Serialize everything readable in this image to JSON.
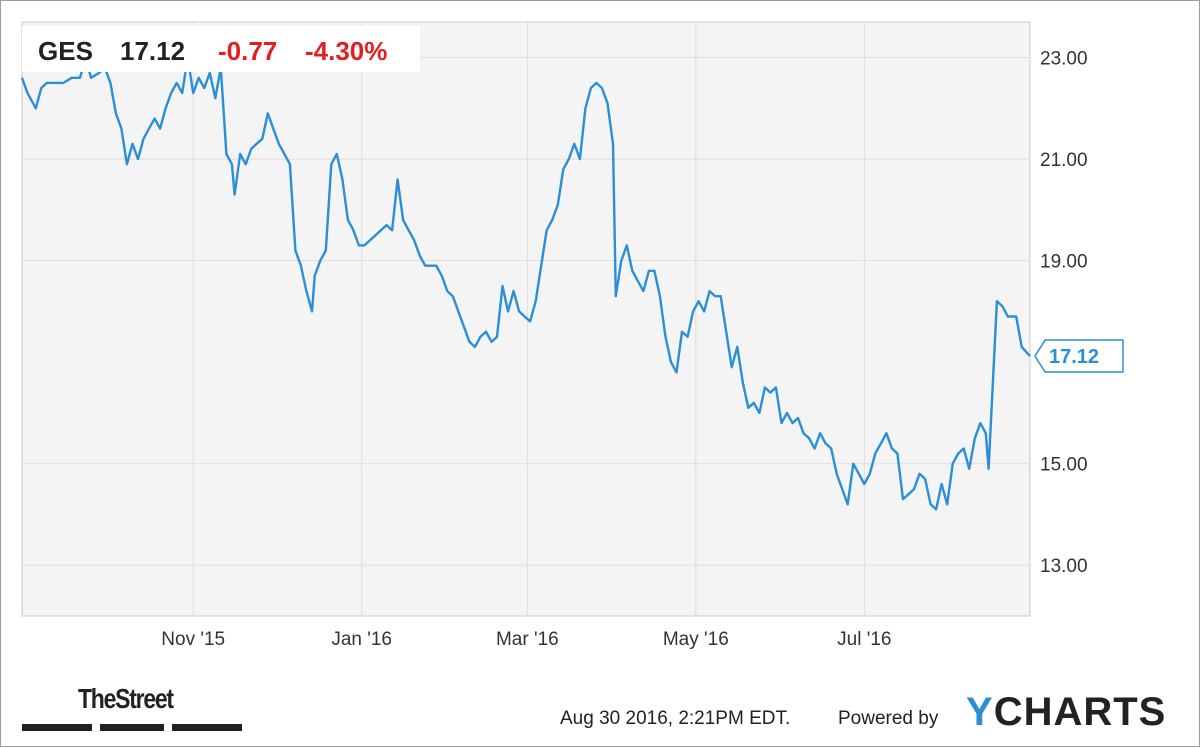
{
  "header": {
    "ticker": "GES",
    "price": "17.12",
    "change": "-0.77",
    "change_pct": "-4.30%"
  },
  "colors": {
    "line": "#2b8fd6",
    "negative": "#e02020",
    "plot_background": "#f4f4f4",
    "grid": "#dddddd"
  },
  "footer": {
    "timestamp": "Aug 30 2016, 2:21PM EDT.",
    "powered_by": "Powered by",
    "brand_y": "Y",
    "brand_rest": "CHARTS",
    "publisher_logo": "TheStreet"
  },
  "chart_data": {
    "type": "line",
    "title": "",
    "xlabel": "",
    "ylabel": "",
    "ylim": [
      12.0,
      23.7
    ],
    "y_ticks": [
      "23.00",
      "21.00",
      "19.00",
      "15.00",
      "13.00"
    ],
    "x_ticks": [
      "Nov '15",
      "Jan '16",
      "Mar '16",
      "May '16",
      "Jul '16"
    ],
    "x_range": [
      "2015-08-31",
      "2016-08-30"
    ],
    "grid": true,
    "last_value_label": "17.12",
    "series": [
      {
        "values": [
          [
            "2015-08-31",
            22.6
          ],
          [
            "2015-09-02",
            22.3
          ],
          [
            "2015-09-05",
            22.0
          ],
          [
            "2015-09-07",
            22.4
          ],
          [
            "2015-09-09",
            22.5
          ],
          [
            "2015-09-12",
            22.5
          ],
          [
            "2015-09-15",
            22.5
          ],
          [
            "2015-09-18",
            22.6
          ],
          [
            "2015-09-21",
            22.6
          ],
          [
            "2015-09-23",
            23.0
          ],
          [
            "2015-09-25",
            22.6
          ],
          [
            "2015-09-28",
            22.7
          ],
          [
            "2015-09-30",
            22.8
          ],
          [
            "2015-10-02",
            22.5
          ],
          [
            "2015-10-04",
            21.9
          ],
          [
            "2015-10-06",
            21.6
          ],
          [
            "2015-10-08",
            20.9
          ],
          [
            "2015-10-10",
            21.3
          ],
          [
            "2015-10-12",
            21.0
          ],
          [
            "2015-10-14",
            21.4
          ],
          [
            "2015-10-16",
            21.6
          ],
          [
            "2015-10-18",
            21.8
          ],
          [
            "2015-10-20",
            21.6
          ],
          [
            "2015-10-22",
            22.0
          ],
          [
            "2015-10-24",
            22.3
          ],
          [
            "2015-10-26",
            22.5
          ],
          [
            "2015-10-28",
            22.3
          ],
          [
            "2015-10-30",
            23.0
          ],
          [
            "2015-11-01",
            22.3
          ],
          [
            "2015-11-03",
            22.6
          ],
          [
            "2015-11-05",
            22.4
          ],
          [
            "2015-11-07",
            22.7
          ],
          [
            "2015-11-09",
            22.2
          ],
          [
            "2015-11-11",
            22.8
          ],
          [
            "2015-11-13",
            21.1
          ],
          [
            "2015-11-15",
            20.9
          ],
          [
            "2015-11-16",
            20.3
          ],
          [
            "2015-11-18",
            21.1
          ],
          [
            "2015-11-20",
            20.9
          ],
          [
            "2015-11-22",
            21.2
          ],
          [
            "2015-11-24",
            21.3
          ],
          [
            "2015-11-26",
            21.4
          ],
          [
            "2015-11-28",
            21.9
          ],
          [
            "2015-11-30",
            21.6
          ],
          [
            "2015-12-02",
            21.3
          ],
          [
            "2015-12-04",
            21.1
          ],
          [
            "2015-12-06",
            20.9
          ],
          [
            "2015-12-08",
            19.2
          ],
          [
            "2015-12-10",
            18.9
          ],
          [
            "2015-12-12",
            18.4
          ],
          [
            "2015-12-14",
            18.0
          ],
          [
            "2015-12-15",
            18.7
          ],
          [
            "2015-12-17",
            19.0
          ],
          [
            "2015-12-19",
            19.2
          ],
          [
            "2015-12-21",
            20.9
          ],
          [
            "2015-12-23",
            21.1
          ],
          [
            "2015-12-25",
            20.6
          ],
          [
            "2015-12-27",
            19.8
          ],
          [
            "2015-12-29",
            19.6
          ],
          [
            "2015-12-31",
            19.3
          ],
          [
            "2016-01-02",
            19.3
          ],
          [
            "2016-01-04",
            19.4
          ],
          [
            "2016-01-06",
            19.5
          ],
          [
            "2016-01-08",
            19.6
          ],
          [
            "2016-01-10",
            19.7
          ],
          [
            "2016-01-12",
            19.6
          ],
          [
            "2016-01-14",
            20.6
          ],
          [
            "2016-01-16",
            19.8
          ],
          [
            "2016-01-18",
            19.6
          ],
          [
            "2016-01-20",
            19.4
          ],
          [
            "2016-01-22",
            19.1
          ],
          [
            "2016-01-24",
            18.9
          ],
          [
            "2016-01-26",
            18.9
          ],
          [
            "2016-01-28",
            18.9
          ],
          [
            "2016-01-30",
            18.7
          ],
          [
            "2016-02-01",
            18.4
          ],
          [
            "2016-02-03",
            18.3
          ],
          [
            "2016-02-05",
            18.0
          ],
          [
            "2016-02-07",
            17.7
          ],
          [
            "2016-02-09",
            17.4
          ],
          [
            "2016-02-11",
            17.3
          ],
          [
            "2016-02-13",
            17.5
          ],
          [
            "2016-02-15",
            17.6
          ],
          [
            "2016-02-17",
            17.4
          ],
          [
            "2016-02-19",
            17.5
          ],
          [
            "2016-02-21",
            18.5
          ],
          [
            "2016-02-23",
            18.0
          ],
          [
            "2016-02-25",
            18.4
          ],
          [
            "2016-02-27",
            18.0
          ],
          [
            "2016-02-29",
            17.9
          ],
          [
            "2016-03-02",
            17.8
          ],
          [
            "2016-03-04",
            18.2
          ],
          [
            "2016-03-06",
            18.9
          ],
          [
            "2016-03-08",
            19.6
          ],
          [
            "2016-03-10",
            19.8
          ],
          [
            "2016-03-12",
            20.1
          ],
          [
            "2016-03-14",
            20.8
          ],
          [
            "2016-03-16",
            21.0
          ],
          [
            "2016-03-18",
            21.3
          ],
          [
            "2016-03-20",
            21.0
          ],
          [
            "2016-03-22",
            22.0
          ],
          [
            "2016-03-24",
            22.4
          ],
          [
            "2016-03-26",
            22.5
          ],
          [
            "2016-03-28",
            22.4
          ],
          [
            "2016-03-30",
            22.1
          ],
          [
            "2016-04-01",
            21.3
          ],
          [
            "2016-04-02",
            18.3
          ],
          [
            "2016-04-04",
            19.0
          ],
          [
            "2016-04-06",
            19.3
          ],
          [
            "2016-04-08",
            18.8
          ],
          [
            "2016-04-10",
            18.6
          ],
          [
            "2016-04-12",
            18.4
          ],
          [
            "2016-04-14",
            18.8
          ],
          [
            "2016-04-16",
            18.8
          ],
          [
            "2016-04-18",
            18.3
          ],
          [
            "2016-04-20",
            17.5
          ],
          [
            "2016-04-22",
            17.0
          ],
          [
            "2016-04-24",
            16.8
          ],
          [
            "2016-04-26",
            17.6
          ],
          [
            "2016-04-28",
            17.5
          ],
          [
            "2016-04-30",
            18.0
          ],
          [
            "2016-05-02",
            18.2
          ],
          [
            "2016-05-04",
            18.0
          ],
          [
            "2016-05-06",
            18.4
          ],
          [
            "2016-05-08",
            18.3
          ],
          [
            "2016-05-10",
            18.3
          ],
          [
            "2016-05-12",
            17.6
          ],
          [
            "2016-05-14",
            16.9
          ],
          [
            "2016-05-16",
            17.3
          ],
          [
            "2016-05-18",
            16.6
          ],
          [
            "2016-05-20",
            16.1
          ],
          [
            "2016-05-22",
            16.2
          ],
          [
            "2016-05-24",
            16.0
          ],
          [
            "2016-05-26",
            16.5
          ],
          [
            "2016-05-28",
            16.4
          ],
          [
            "2016-05-30",
            16.5
          ],
          [
            "2016-06-01",
            15.8
          ],
          [
            "2016-06-03",
            16.0
          ],
          [
            "2016-06-05",
            15.8
          ],
          [
            "2016-06-07",
            15.9
          ],
          [
            "2016-06-09",
            15.6
          ],
          [
            "2016-06-11",
            15.5
          ],
          [
            "2016-06-13",
            15.3
          ],
          [
            "2016-06-15",
            15.6
          ],
          [
            "2016-06-17",
            15.4
          ],
          [
            "2016-06-19",
            15.3
          ],
          [
            "2016-06-21",
            14.8
          ],
          [
            "2016-06-23",
            14.5
          ],
          [
            "2016-06-25",
            14.2
          ],
          [
            "2016-06-27",
            15.0
          ],
          [
            "2016-06-29",
            14.8
          ],
          [
            "2016-07-01",
            14.6
          ],
          [
            "2016-07-03",
            14.8
          ],
          [
            "2016-07-05",
            15.2
          ],
          [
            "2016-07-07",
            15.4
          ],
          [
            "2016-07-09",
            15.6
          ],
          [
            "2016-07-11",
            15.3
          ],
          [
            "2016-07-13",
            15.2
          ],
          [
            "2016-07-15",
            14.3
          ],
          [
            "2016-07-17",
            14.4
          ],
          [
            "2016-07-19",
            14.5
          ],
          [
            "2016-07-21",
            14.8
          ],
          [
            "2016-07-23",
            14.7
          ],
          [
            "2016-07-25",
            14.2
          ],
          [
            "2016-07-27",
            14.1
          ],
          [
            "2016-07-29",
            14.6
          ],
          [
            "2016-07-31",
            14.2
          ],
          [
            "2016-08-02",
            15.0
          ],
          [
            "2016-08-04",
            15.2
          ],
          [
            "2016-08-06",
            15.3
          ],
          [
            "2016-08-08",
            14.9
          ],
          [
            "2016-08-10",
            15.5
          ],
          [
            "2016-08-12",
            15.8
          ],
          [
            "2016-08-14",
            15.6
          ],
          [
            "2016-08-15",
            14.9
          ],
          [
            "2016-08-18",
            18.2
          ],
          [
            "2016-08-20",
            18.1
          ],
          [
            "2016-08-22",
            17.9
          ],
          [
            "2016-08-25",
            17.9
          ],
          [
            "2016-08-27",
            17.3
          ],
          [
            "2016-08-30",
            17.12
          ]
        ]
      }
    ]
  }
}
